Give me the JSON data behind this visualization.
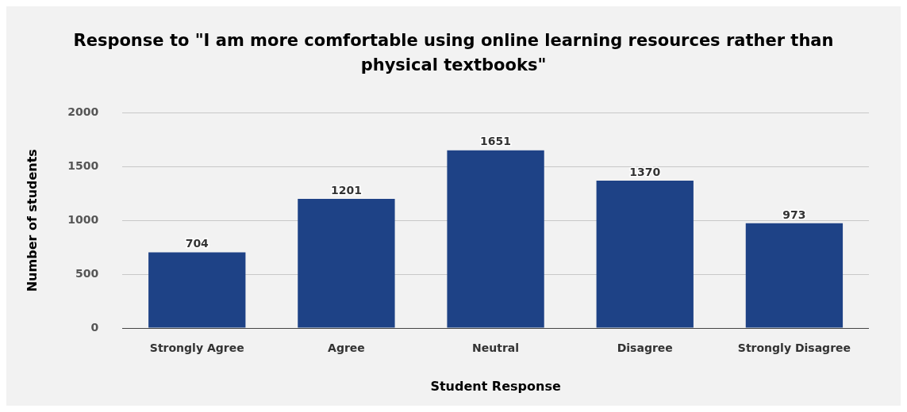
{
  "chart_data": {
    "type": "bar",
    "title": "Response to \"I am more comfortable using online learning resources rather than physical textbooks\"",
    "xlabel": "Student Response",
    "ylabel": "Number of students",
    "categories": [
      "Strongly Agree",
      "Agree",
      "Neutral",
      "Disagree",
      "Strongly Disagree"
    ],
    "values": [
      704,
      1201,
      1651,
      1370,
      973
    ],
    "color": "#1e4286",
    "ylim": [
      0,
      2000
    ],
    "yticks": [
      0,
      500,
      1000,
      1500,
      2000
    ],
    "grid": "y",
    "data_labels": true,
    "legend": false
  }
}
